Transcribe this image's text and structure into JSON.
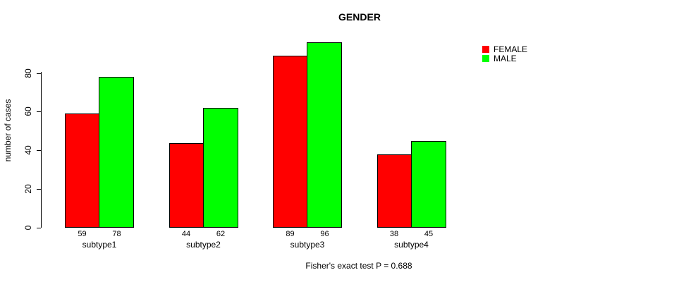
{
  "title": "GENDER",
  "y_axis": {
    "label": "number of cases",
    "tick_labels": [
      "0",
      "20",
      "40",
      "60",
      "80"
    ]
  },
  "legend": {
    "items": [
      {
        "label": "FEMALE",
        "color": "#ff0000"
      },
      {
        "label": "MALE",
        "color": "#00ff00"
      }
    ]
  },
  "footer": {
    "text": "Fisher's exact test P = 0.688"
  },
  "chart_data": {
    "type": "bar",
    "title": "GENDER",
    "categories": [
      "subtype1",
      "subtype2",
      "subtype3",
      "subtype4"
    ],
    "series": [
      {
        "name": "FEMALE",
        "color": "#ff0000",
        "values": [
          59,
          44,
          89,
          38
        ]
      },
      {
        "name": "MALE",
        "color": "#00ff00",
        "values": [
          78,
          62,
          96,
          45
        ]
      }
    ],
    "bar_value_labels": [
      [
        "59",
        "78"
      ],
      [
        "44",
        "62"
      ],
      [
        "89",
        "96"
      ],
      [
        "38",
        "45"
      ]
    ],
    "xlabel": "",
    "ylabel": "number of cases",
    "yticks": [
      0,
      20,
      40,
      60,
      80
    ],
    "ylim": [
      0,
      96
    ],
    "grid": false,
    "legend_position": "top-right",
    "annotation": "Fisher's exact test P = 0.688",
    "bar_border_color": "#000000",
    "background_color": "#ffffff"
  }
}
